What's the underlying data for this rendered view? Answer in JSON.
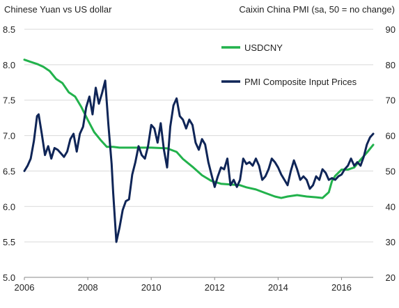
{
  "chart_data": {
    "type": "line",
    "left_axis_title": "Chinese Yuan vs US dollar",
    "right_axis_title": "Caixin China PMI (sa, 50 = no change)",
    "xlim": [
      2006,
      2017
    ],
    "x_ticks": [
      "2006",
      "2008",
      "2010",
      "2012",
      "2014",
      "2016"
    ],
    "ylim_left": [
      5.0,
      8.5
    ],
    "y_ticks_left": [
      "5.0",
      "5.5",
      "6.0",
      "6.5",
      "7.0",
      "7.5",
      "8.0",
      "8.5"
    ],
    "ylim_right": [
      20,
      90
    ],
    "y_ticks_right": [
      "20",
      "30",
      "40",
      "50",
      "60",
      "70",
      "80",
      "90"
    ],
    "grid": true,
    "legend_position": "top-right",
    "series": [
      {
        "name": "USDCNY",
        "axis": "left",
        "color": "#22b24c",
        "x": [
          2006.0,
          2006.2,
          2006.4,
          2006.6,
          2006.8,
          2007.0,
          2007.2,
          2007.4,
          2007.6,
          2007.8,
          2008.0,
          2008.2,
          2008.4,
          2008.6,
          2008.8,
          2009.0,
          2009.5,
          2010.0,
          2010.5,
          2010.8,
          2011.0,
          2011.3,
          2011.6,
          2011.9,
          2012.2,
          2012.5,
          2012.8,
          2013.0,
          2013.3,
          2013.6,
          2013.9,
          2014.1,
          2014.3,
          2014.6,
          2014.9,
          2015.2,
          2015.4,
          2015.6,
          2015.7,
          2015.8,
          2016.0,
          2016.2,
          2016.4,
          2016.6,
          2016.8,
          2017.0
        ],
        "values": [
          8.07,
          8.04,
          8.01,
          7.97,
          7.91,
          7.8,
          7.74,
          7.61,
          7.55,
          7.4,
          7.22,
          7.05,
          6.94,
          6.84,
          6.84,
          6.83,
          6.83,
          6.83,
          6.82,
          6.77,
          6.67,
          6.56,
          6.44,
          6.36,
          6.32,
          6.31,
          6.3,
          6.27,
          6.24,
          6.19,
          6.14,
          6.12,
          6.14,
          6.16,
          6.14,
          6.13,
          6.12,
          6.2,
          6.36,
          6.43,
          6.52,
          6.52,
          6.55,
          6.66,
          6.76,
          6.87
        ]
      },
      {
        "name": "PMI Composite Input Prices",
        "axis": "right",
        "color": "#0f2557",
        "x": [
          2006.0,
          2006.1,
          2006.2,
          2006.3,
          2006.4,
          2006.45,
          2006.55,
          2006.65,
          2006.75,
          2006.85,
          2006.95,
          2007.05,
          2007.15,
          2007.25,
          2007.35,
          2007.45,
          2007.55,
          2007.65,
          2007.75,
          2007.85,
          2007.95,
          2008.05,
          2008.15,
          2008.25,
          2008.35,
          2008.45,
          2008.55,
          2008.65,
          2008.75,
          2008.8,
          2008.9,
          2009.0,
          2009.1,
          2009.2,
          2009.3,
          2009.4,
          2009.5,
          2009.6,
          2009.7,
          2009.8,
          2009.9,
          2010.0,
          2010.1,
          2010.2,
          2010.3,
          2010.4,
          2010.5,
          2010.6,
          2010.7,
          2010.8,
          2010.9,
          2011.0,
          2011.1,
          2011.2,
          2011.3,
          2011.4,
          2011.5,
          2011.6,
          2011.7,
          2011.8,
          2011.9,
          2012.0,
          2012.1,
          2012.2,
          2012.3,
          2012.4,
          2012.5,
          2012.6,
          2012.7,
          2012.8,
          2012.9,
          2013.0,
          2013.1,
          2013.2,
          2013.3,
          2013.4,
          2013.5,
          2013.6,
          2013.7,
          2013.8,
          2013.9,
          2014.0,
          2014.1,
          2014.2,
          2014.3,
          2014.4,
          2014.5,
          2014.6,
          2014.7,
          2014.8,
          2014.9,
          2015.0,
          2015.1,
          2015.2,
          2015.3,
          2015.4,
          2015.5,
          2015.6,
          2015.7,
          2015.8,
          2015.9,
          2016.0,
          2016.1,
          2016.2,
          2016.3,
          2016.4,
          2016.5,
          2016.6,
          2016.7,
          2016.8,
          2016.9,
          2017.0
        ],
        "values": [
          50.0,
          51.5,
          53.5,
          58.5,
          65.5,
          66.0,
          60.5,
          54.5,
          57.0,
          53.5,
          56.5,
          56.0,
          55.0,
          54.0,
          55.5,
          59.0,
          60.5,
          55.5,
          60.5,
          62.5,
          68.0,
          71.0,
          66.0,
          73.5,
          69.0,
          72.0,
          75.5,
          63.0,
          52.0,
          44.0,
          30.0,
          34.0,
          39.0,
          41.5,
          42.0,
          49.0,
          52.5,
          57.0,
          54.5,
          53.5,
          57.0,
          63.0,
          62.0,
          58.0,
          63.5,
          56.0,
          51.0,
          62.5,
          68.5,
          70.5,
          65.5,
          64.5,
          62.0,
          64.5,
          63.0,
          58.0,
          56.0,
          59.0,
          57.5,
          52.5,
          49.0,
          45.5,
          48.5,
          51.0,
          50.5,
          53.5,
          46.0,
          47.5,
          45.5,
          47.5,
          53.5,
          52.0,
          52.5,
          51.5,
          53.5,
          51.5,
          47.5,
          48.5,
          50.5,
          53.5,
          52.5,
          51.0,
          49.0,
          47.5,
          46.0,
          50.0,
          53.0,
          50.5,
          47.5,
          48.5,
          47.5,
          45.0,
          46.0,
          48.5,
          47.5,
          50.5,
          49.5,
          47.5,
          48.0,
          47.5,
          48.5,
          49.0,
          50.5,
          51.5,
          53.5,
          51.5,
          52.5,
          51.5,
          54.0,
          57.5,
          59.5,
          60.5
        ]
      }
    ]
  }
}
